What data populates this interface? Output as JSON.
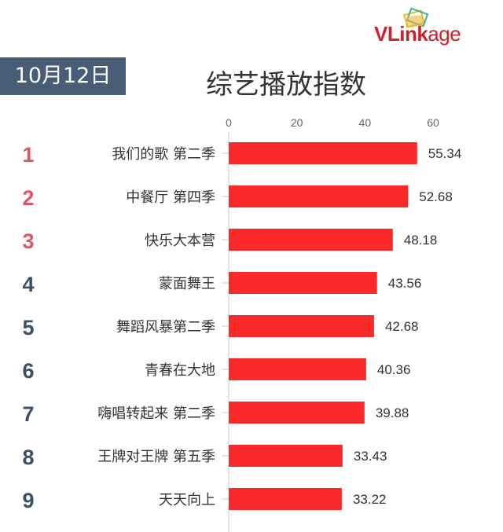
{
  "logo": {
    "text_bold": "VLink",
    "text_light": "age"
  },
  "date_badge": "10月12日",
  "chart_data": {
    "type": "bar",
    "orientation": "horizontal",
    "title": "综艺播放指数",
    "categories": [
      "我们的歌 第二季",
      "中餐厅 第四季",
      "快乐大本营",
      "蒙面舞王",
      "舞蹈风暴第二季",
      "青春在大地",
      "嗨唱转起来 第二季",
      "王牌对王牌 第五季",
      "天天向上"
    ],
    "ranks": [
      "1",
      "2",
      "3",
      "4",
      "5",
      "6",
      "7",
      "8",
      "9"
    ],
    "values": [
      55.34,
      52.68,
      48.18,
      43.56,
      42.68,
      40.36,
      39.88,
      33.43,
      33.22
    ],
    "xlim": [
      0,
      60
    ],
    "xticks": [
      0,
      20,
      40,
      60
    ],
    "axis_position": "top",
    "grid": false,
    "colors": {
      "bar": "#fb2a2a",
      "rank_top3": "#e05560",
      "rank_other": "#3d5068",
      "badge": "#4a5d78"
    }
  }
}
